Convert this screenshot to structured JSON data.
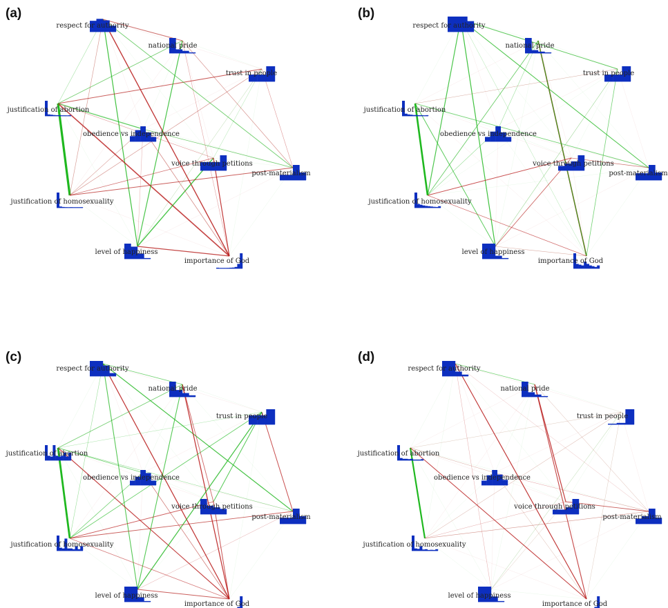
{
  "panels": [
    {
      "label": "(a)",
      "histograms": {
        "respect_for_authority": [
          0.72,
          0.85,
          0.75,
          0.4
        ],
        "national_pride": [
          1.0,
          0.25,
          0.15,
          0.05
        ],
        "trust_in_people": [
          0.45,
          0.45,
          1.0
        ],
        "justification_of_abortion": [
          1.0,
          0.1,
          0.08,
          0.06,
          0.05,
          0.05,
          0.04,
          0.04,
          0.03,
          0.05
        ],
        "obedience_vs_independence": [
          0.35,
          0.75,
          1.0,
          0.6,
          0.3
        ],
        "voice_through_petitions": [
          0.55,
          0.55,
          0.55,
          1.0
        ],
        "post_materialism": [
          0.35,
          0.35,
          1.0,
          0.5
        ],
        "justification_of_homosexuality": [
          1.0,
          0.08,
          0.05,
          0.04,
          0.03,
          0.04,
          0.03,
          0.03,
          0.02,
          0.04
        ],
        "level_of_happiness": [
          1.0,
          0.8,
          0.35,
          0.05
        ],
        "importance_of_god": [
          0.05,
          0.03,
          0.03,
          0.03,
          0.04,
          0.05,
          0.06,
          0.1,
          0.3,
          1.0
        ]
      }
    },
    {
      "label": "(b)",
      "histograms": {
        "respect_for_authority": [
          1.0,
          1.0,
          1.0,
          0.7
        ],
        "national_pride": [
          1.0,
          0.2,
          0.1,
          0.05
        ],
        "trust_in_people": [
          0.45,
          0.45,
          1.0
        ],
        "justification_of_abortion": [
          1.0,
          0.15,
          0.1,
          0.08,
          0.06,
          0.06,
          0.05,
          0.05,
          0.04,
          0.05
        ],
        "obedience_vs_independence": [
          0.3,
          0.65,
          1.0,
          0.6,
          0.3
        ],
        "voice_through_petitions": [
          0.3,
          0.45,
          0.6,
          1.0
        ],
        "post_materialism": [
          0.45,
          0.45,
          1.0,
          0.5
        ],
        "justification_of_homosexuality": [
          1.0,
          0.25,
          0.2,
          0.15,
          0.12,
          0.1,
          0.08,
          0.06,
          0.05,
          0.1
        ],
        "level_of_happiness": [
          1.0,
          1.0,
          0.2,
          0.05
        ],
        "importance_of_god": [
          1.0,
          0.3,
          0.25,
          0.2,
          0.45,
          0.3,
          0.2,
          0.15,
          0.1,
          0.2
        ]
      }
    },
    {
      "label": "(c)",
      "histograms": {
        "respect_for_authority": [
          1.0,
          1.0,
          0.7,
          0.2
        ],
        "national_pride": [
          1.0,
          0.45,
          0.25,
          0.1
        ],
        "trust_in_people": [
          0.6,
          0.6,
          1.0
        ],
        "justification_of_abortion": [
          1.0,
          0.3,
          0.25,
          1.0,
          0.3,
          0.25,
          0.3,
          0.5,
          0.25,
          0.5
        ],
        "obedience_vs_independence": [
          0.3,
          0.55,
          1.0,
          0.8,
          0.3
        ],
        "voice_through_petitions": [
          1.0,
          0.55,
          0.45,
          0.35
        ],
        "post_materialism": [
          0.4,
          0.4,
          1.0,
          0.5
        ],
        "justification_of_homosexuality": [
          1.0,
          0.2,
          0.15,
          0.8,
          0.15,
          0.15,
          0.1,
          0.3,
          0.1,
          0.3
        ],
        "level_of_happiness": [
          1.0,
          1.0,
          0.3,
          0.05
        ],
        "importance_of_god": [
          0.2,
          0.1,
          0.1,
          0.1,
          0.15,
          0.2,
          0.15,
          0.2,
          0.3,
          1.0
        ]
      }
    },
    {
      "label": "(d)",
      "histograms": {
        "respect_for_authority": [
          1.0,
          1.0,
          0.3,
          0.1
        ],
        "national_pride": [
          1.0,
          0.3,
          0.15,
          0.05
        ],
        "trust_in_people": [
          0.05,
          0.1,
          1.0
        ],
        "justification_of_abortion": [
          1.0,
          0.15,
          0.1,
          0.1,
          0.08,
          0.1,
          0.05,
          0.05,
          0.05,
          0.08
        ],
        "obedience_vs_independence": [
          0.3,
          0.65,
          1.0,
          0.7,
          0.35
        ],
        "voice_through_petitions": [
          0.3,
          0.3,
          0.45,
          1.0
        ],
        "post_materialism": [
          0.35,
          0.5,
          1.0,
          0.4
        ],
        "justification_of_homosexuality": [
          1.0,
          0.15,
          0.12,
          0.3,
          0.08,
          0.1,
          0.05,
          0.06,
          0.05,
          0.1
        ],
        "level_of_happiness": [
          1.0,
          1.0,
          0.35,
          0.05
        ],
        "importance_of_god": [
          0.08,
          0.05,
          0.05,
          0.05,
          0.07,
          0.08,
          0.08,
          0.1,
          0.3,
          1.0
        ]
      }
    }
  ],
  "node_labels": {
    "respect_for_authority": "respect for authority",
    "national_pride": "national pride",
    "trust_in_people": "trust in people",
    "justification_of_abortion": "justification of abortion",
    "obedience_vs_independence": "obedience vs independence",
    "voice_through_petitions": "voice through petitions",
    "post_materialism": "post-materialism",
    "justification_of_homosexuality": "justification of homosexuality",
    "level_of_happiness": "level of happiness",
    "importance_of_god": "importance of God"
  },
  "edge_colors": {
    "positive": "#1fb81f",
    "negative": "#b81a1a"
  },
  "histogram_color": "#0d2fbf"
}
